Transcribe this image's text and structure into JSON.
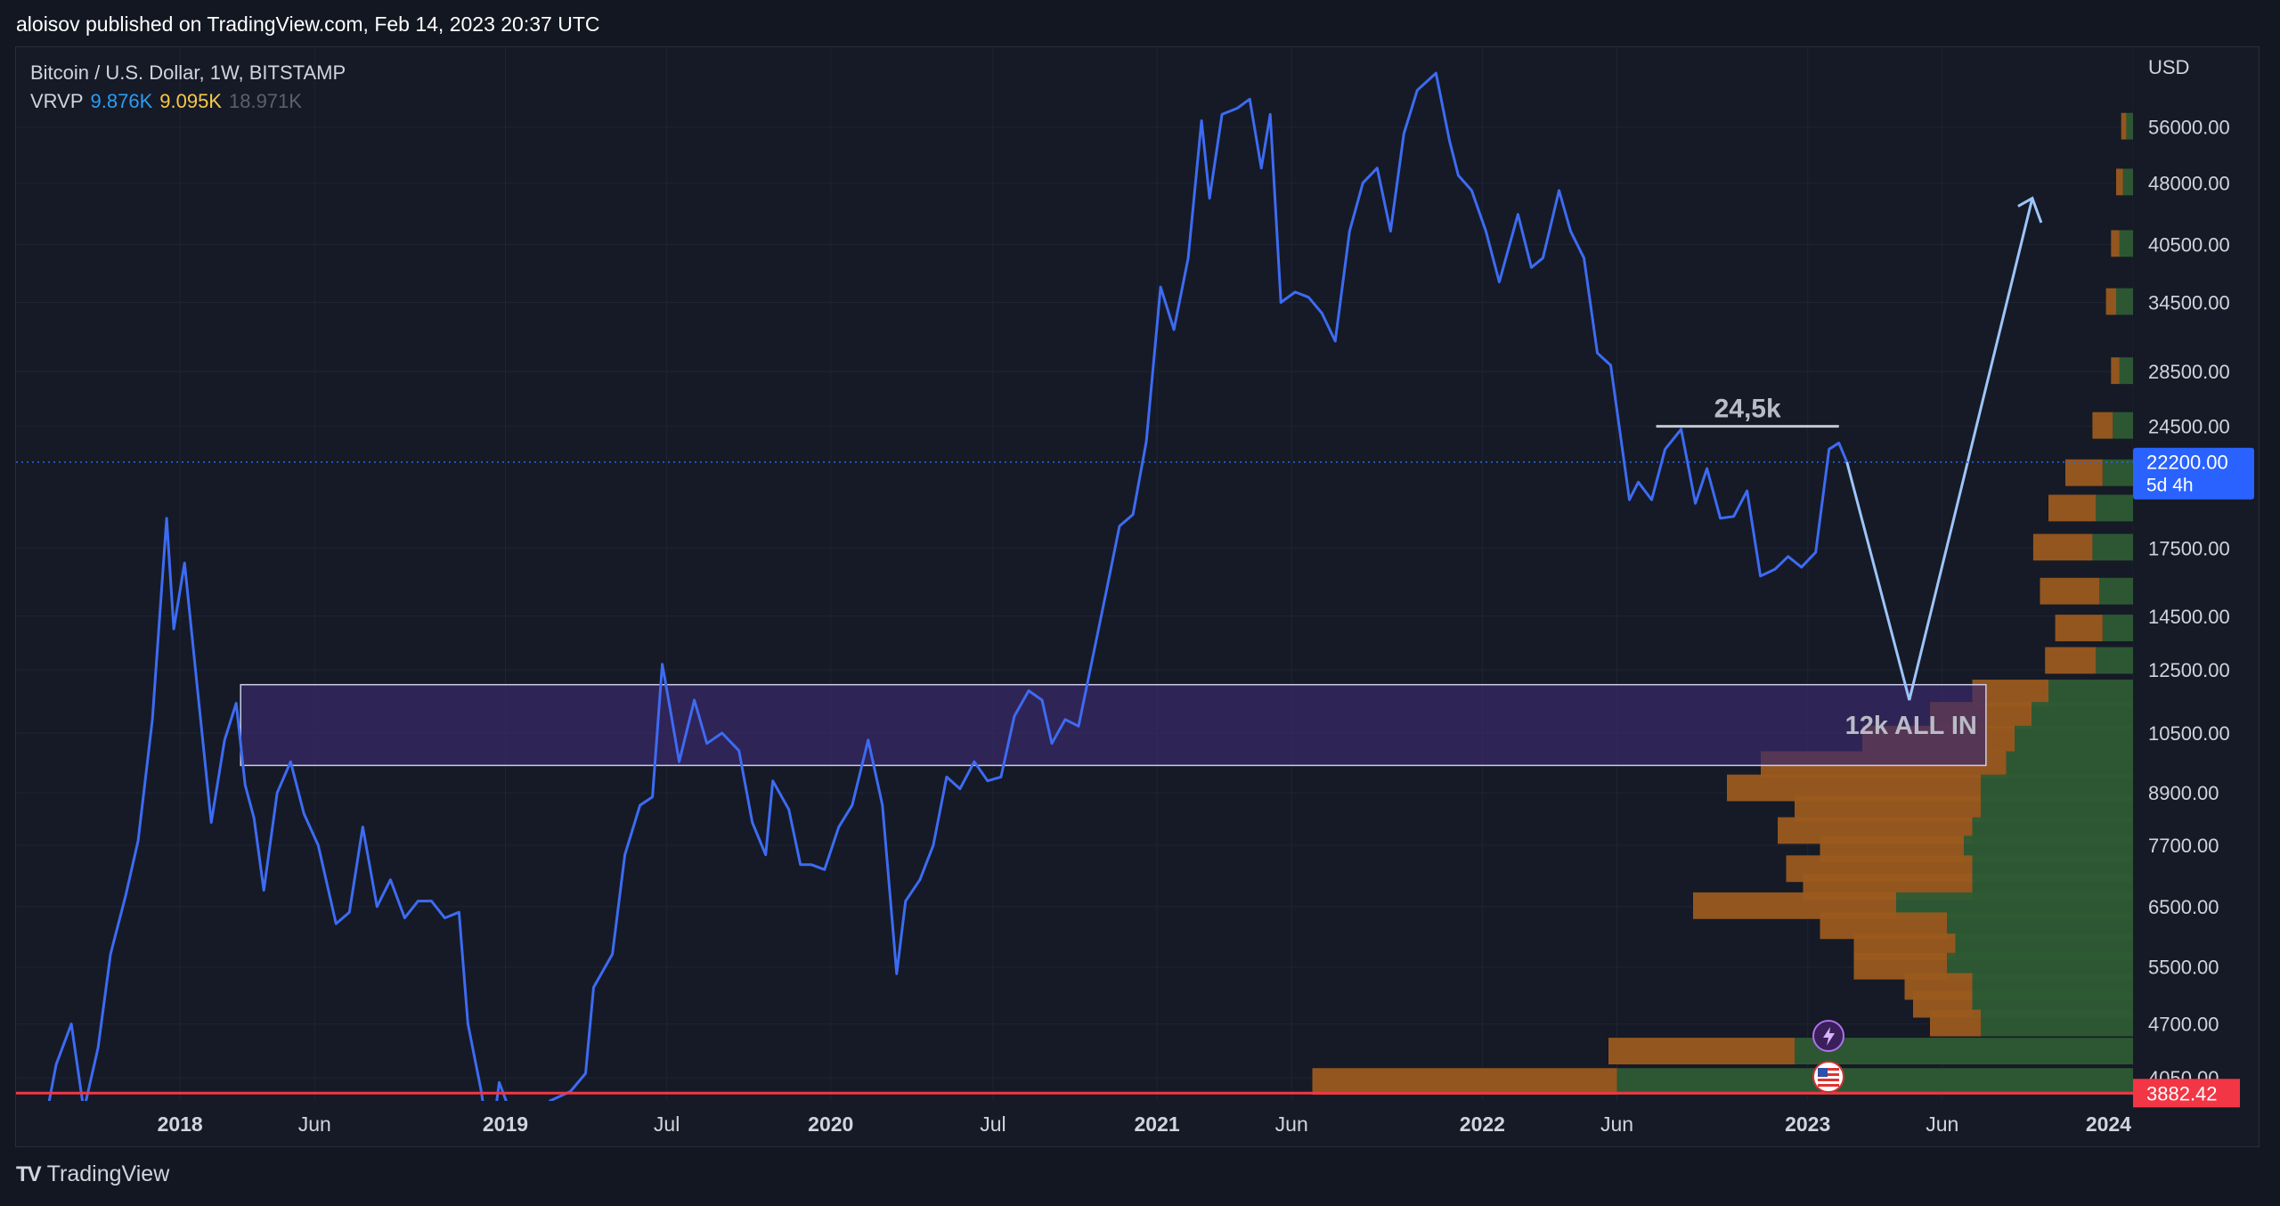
{
  "header": {
    "published": "aloisov published on TradingView.com, Feb 14, 2023 20:37 UTC"
  },
  "legend": {
    "symbol": "Bitcoin / U.S. Dollar, 1W, BITSTAMP",
    "indicator": "VRVP",
    "vrvp_up": "9.876K",
    "vrvp_down": "9.095K",
    "vrvp_total": "18.971K"
  },
  "footer": {
    "brand": "TradingView",
    "logo_glyph": "TV"
  },
  "colors": {
    "background": "#131722",
    "price_line": "#3d6bf2",
    "projection": "#9ec5fb",
    "zone_fill": "#3b2a6b",
    "zone_border": "#c9cde8",
    "support_line": "#f23645",
    "vol_up": "#2e5b34",
    "vol_down": "#9a5a1e",
    "grid": "#1f2433"
  },
  "chart_data": {
    "type": "line",
    "title": "Bitcoin / U.S. Dollar, 1W, BITSTAMP",
    "currency": "USD",
    "y_scale": "log",
    "ylim": [
      3800,
      70000
    ],
    "xlim": [
      "2017-07-01",
      "2024-01-01"
    ],
    "y_ticks": [
      56000,
      48000,
      40500,
      34500,
      28500,
      24500,
      17500,
      14500,
      12500,
      10500,
      8900,
      7700,
      6500,
      5500,
      4700,
      4050
    ],
    "y_tick_labels": [
      "56000.00",
      "48000.00",
      "40500.00",
      "34500.00",
      "28500.00",
      "24500.00",
      "17500.00",
      "14500.00",
      "12500.00",
      "10500.00",
      "8900.00",
      "7700.00",
      "6500.00",
      "5500.00",
      "4700.00",
      "4050.00"
    ],
    "x_ticks": [
      {
        "date": "2018-01-01",
        "label": "2018",
        "bold": true
      },
      {
        "date": "2018-06-01",
        "label": "Jun",
        "bold": false
      },
      {
        "date": "2019-01-01",
        "label": "2019",
        "bold": true
      },
      {
        "date": "2019-07-01",
        "label": "Jul",
        "bold": false
      },
      {
        "date": "2020-01-01",
        "label": "2020",
        "bold": true
      },
      {
        "date": "2020-07-01",
        "label": "Jul",
        "bold": false
      },
      {
        "date": "2021-01-01",
        "label": "2021",
        "bold": true
      },
      {
        "date": "2021-06-01",
        "label": "Jun",
        "bold": false
      },
      {
        "date": "2022-01-01",
        "label": "2022",
        "bold": true
      },
      {
        "date": "2022-06-01",
        "label": "Jun",
        "bold": false
      },
      {
        "date": "2023-01-01",
        "label": "2023",
        "bold": true
      },
      {
        "date": "2023-06-01",
        "label": "Jun",
        "bold": false
      },
      {
        "date": "2024-01-01",
        "label": "2024",
        "bold": true
      }
    ],
    "series": [
      {
        "points": [
          [
            "2017-08-01",
            3500
          ],
          [
            "2017-08-15",
            4200
          ],
          [
            "2017-09-01",
            4700
          ],
          [
            "2017-09-15",
            3700
          ],
          [
            "2017-10-01",
            4400
          ],
          [
            "2017-10-15",
            5700
          ],
          [
            "2017-11-01",
            6700
          ],
          [
            "2017-11-15",
            7800
          ],
          [
            "2017-12-01",
            10900
          ],
          [
            "2017-12-17",
            19000
          ],
          [
            "2017-12-25",
            14000
          ],
          [
            "2018-01-06",
            16800
          ],
          [
            "2018-01-20",
            12000
          ],
          [
            "2018-02-05",
            8200
          ],
          [
            "2018-02-20",
            10300
          ],
          [
            "2018-03-05",
            11400
          ],
          [
            "2018-03-15",
            9100
          ],
          [
            "2018-03-25",
            8300
          ],
          [
            "2018-04-05",
            6800
          ],
          [
            "2018-04-20",
            8900
          ],
          [
            "2018-05-05",
            9700
          ],
          [
            "2018-05-20",
            8400
          ],
          [
            "2018-06-05",
            7700
          ],
          [
            "2018-06-25",
            6200
          ],
          [
            "2018-07-10",
            6400
          ],
          [
            "2018-07-25",
            8100
          ],
          [
            "2018-08-10",
            6500
          ],
          [
            "2018-08-25",
            7000
          ],
          [
            "2018-09-10",
            6300
          ],
          [
            "2018-09-25",
            6600
          ],
          [
            "2018-10-10",
            6600
          ],
          [
            "2018-10-25",
            6300
          ],
          [
            "2018-11-10",
            6400
          ],
          [
            "2018-11-20",
            4700
          ],
          [
            "2018-12-05",
            3900
          ],
          [
            "2018-12-15",
            3300
          ],
          [
            "2018-12-25",
            4000
          ],
          [
            "2019-01-10",
            3600
          ],
          [
            "2019-02-01",
            3450
          ],
          [
            "2019-02-20",
            3800
          ],
          [
            "2019-03-15",
            3900
          ],
          [
            "2019-04-01",
            4100
          ],
          [
            "2019-04-10",
            5200
          ],
          [
            "2019-05-01",
            5700
          ],
          [
            "2019-05-15",
            7500
          ],
          [
            "2019-06-01",
            8600
          ],
          [
            "2019-06-15",
            8800
          ],
          [
            "2019-06-26",
            12700
          ],
          [
            "2019-07-05",
            11200
          ],
          [
            "2019-07-15",
            9700
          ],
          [
            "2019-08-01",
            11500
          ],
          [
            "2019-08-15",
            10200
          ],
          [
            "2019-09-01",
            10500
          ],
          [
            "2019-09-20",
            10000
          ],
          [
            "2019-10-05",
            8200
          ],
          [
            "2019-10-20",
            7500
          ],
          [
            "2019-10-28",
            9200
          ],
          [
            "2019-11-15",
            8500
          ],
          [
            "2019-11-28",
            7300
          ],
          [
            "2019-12-10",
            7300
          ],
          [
            "2019-12-25",
            7200
          ],
          [
            "2020-01-10",
            8100
          ],
          [
            "2020-01-25",
            8600
          ],
          [
            "2020-02-12",
            10300
          ],
          [
            "2020-02-28",
            8600
          ],
          [
            "2020-03-15",
            5400
          ],
          [
            "2020-03-25",
            6600
          ],
          [
            "2020-04-10",
            7000
          ],
          [
            "2020-04-25",
            7700
          ],
          [
            "2020-05-10",
            9300
          ],
          [
            "2020-05-25",
            9000
          ],
          [
            "2020-06-10",
            9700
          ],
          [
            "2020-06-25",
            9200
          ],
          [
            "2020-07-10",
            9300
          ],
          [
            "2020-07-25",
            11000
          ],
          [
            "2020-08-10",
            11800
          ],
          [
            "2020-08-25",
            11500
          ],
          [
            "2020-09-05",
            10200
          ],
          [
            "2020-09-20",
            10900
          ],
          [
            "2020-10-05",
            10700
          ],
          [
            "2020-10-20",
            12800
          ],
          [
            "2020-11-05",
            15500
          ],
          [
            "2020-11-20",
            18600
          ],
          [
            "2020-12-05",
            19200
          ],
          [
            "2020-12-20",
            23500
          ],
          [
            "2021-01-05",
            36000
          ],
          [
            "2021-01-20",
            32000
          ],
          [
            "2021-02-05",
            39000
          ],
          [
            "2021-02-20",
            57000
          ],
          [
            "2021-03-01",
            46000
          ],
          [
            "2021-03-15",
            58000
          ],
          [
            "2021-04-01",
            59000
          ],
          [
            "2021-04-15",
            60500
          ],
          [
            "2021-04-28",
            50000
          ],
          [
            "2021-05-08",
            58000
          ],
          [
            "2021-05-20",
            34500
          ],
          [
            "2021-06-05",
            35500
          ],
          [
            "2021-06-20",
            35000
          ],
          [
            "2021-07-05",
            33500
          ],
          [
            "2021-07-20",
            31000
          ],
          [
            "2021-08-05",
            42000
          ],
          [
            "2021-08-20",
            48000
          ],
          [
            "2021-09-05",
            50000
          ],
          [
            "2021-09-20",
            42000
          ],
          [
            "2021-10-05",
            55000
          ],
          [
            "2021-10-20",
            62000
          ],
          [
            "2021-11-10",
            65000
          ],
          [
            "2021-11-25",
            54000
          ],
          [
            "2021-12-05",
            49000
          ],
          [
            "2021-12-20",
            47000
          ],
          [
            "2022-01-05",
            42000
          ],
          [
            "2022-01-20",
            36500
          ],
          [
            "2022-02-10",
            44000
          ],
          [
            "2022-02-25",
            38000
          ],
          [
            "2022-03-10",
            39000
          ],
          [
            "2022-03-28",
            47000
          ],
          [
            "2022-04-10",
            42000
          ],
          [
            "2022-04-25",
            39000
          ],
          [
            "2022-05-10",
            30000
          ],
          [
            "2022-05-25",
            29000
          ],
          [
            "2022-06-15",
            20000
          ],
          [
            "2022-06-25",
            21000
          ],
          [
            "2022-07-10",
            20000
          ],
          [
            "2022-07-25",
            23000
          ],
          [
            "2022-08-12",
            24300
          ],
          [
            "2022-08-28",
            19800
          ],
          [
            "2022-09-10",
            21800
          ],
          [
            "2022-09-25",
            19000
          ],
          [
            "2022-10-10",
            19100
          ],
          [
            "2022-10-25",
            20500
          ],
          [
            "2022-11-09",
            16200
          ],
          [
            "2022-11-25",
            16500
          ],
          [
            "2022-12-10",
            17100
          ],
          [
            "2022-12-25",
            16600
          ],
          [
            "2023-01-10",
            17300
          ],
          [
            "2023-01-25",
            23000
          ],
          [
            "2023-02-05",
            23400
          ],
          [
            "2023-02-14",
            22200
          ]
        ]
      }
    ],
    "projection": [
      [
        "2023-02-14",
        22200
      ],
      [
        "2023-04-25",
        11500
      ],
      [
        "2023-09-10",
        46000
      ]
    ],
    "projection_arrow": [
      [
        "2023-09-20",
        43000
      ],
      [
        "2023-09-10",
        46000
      ],
      [
        "2023-08-25",
        45000
      ]
    ],
    "resistance_level": {
      "label": "24,5k",
      "value": 24500,
      "from": "2022-07-15",
      "to": "2023-02-05"
    },
    "buy_zone": {
      "label": "12k ALL IN",
      "top": 12000,
      "bottom": 9600,
      "from": "2018-03-10",
      "to": "2023-07-20"
    },
    "support_level": {
      "value": 3882.42,
      "label": "3882.42"
    },
    "current_price": {
      "value": 22200,
      "label": "22200.00",
      "countdown": "5d 4h"
    },
    "volume_profile": [
      {
        "price": 56000,
        "up": 4,
        "down": 3
      },
      {
        "price": 48000,
        "up": 6,
        "down": 4
      },
      {
        "price": 40500,
        "up": 8,
        "down": 5
      },
      {
        "price": 34500,
        "up": 10,
        "down": 6
      },
      {
        "price": 28500,
        "up": 8,
        "down": 5
      },
      {
        "price": 24500,
        "up": 12,
        "down": 12
      },
      {
        "price": 21500,
        "up": 18,
        "down": 22
      },
      {
        "price": 19500,
        "up": 22,
        "down": 28
      },
      {
        "price": 17500,
        "up": 24,
        "down": 35
      },
      {
        "price": 15500,
        "up": 20,
        "down": 35
      },
      {
        "price": 14000,
        "up": 18,
        "down": 28
      },
      {
        "price": 12800,
        "up": 22,
        "down": 30
      },
      {
        "price": 11700,
        "up": 50,
        "down": 45
      },
      {
        "price": 11000,
        "up": 60,
        "down": 60
      },
      {
        "price": 10300,
        "up": 70,
        "down": 90
      },
      {
        "price": 9600,
        "up": 75,
        "down": 145
      },
      {
        "price": 9000,
        "up": 90,
        "down": 150
      },
      {
        "price": 8500,
        "up": 90,
        "down": 110
      },
      {
        "price": 8000,
        "up": 95,
        "down": 115
      },
      {
        "price": 7600,
        "up": 100,
        "down": 85
      },
      {
        "price": 7200,
        "up": 95,
        "down": 110
      },
      {
        "price": 6850,
        "up": 95,
        "down": 100
      },
      {
        "price": 6500,
        "up": 140,
        "down": 120
      },
      {
        "price": 6150,
        "up": 110,
        "down": 75
      },
      {
        "price": 5800,
        "up": 105,
        "down": 60
      },
      {
        "price": 5500,
        "up": 110,
        "down": 55
      },
      {
        "price": 5200,
        "up": 95,
        "down": 40
      },
      {
        "price": 4950,
        "up": 95,
        "down": 35
      },
      {
        "price": 4700,
        "up": 90,
        "down": 30
      },
      {
        "price": 4350,
        "up": 200,
        "down": 110
      },
      {
        "price": 4000,
        "up": 305,
        "down": 180
      }
    ]
  }
}
